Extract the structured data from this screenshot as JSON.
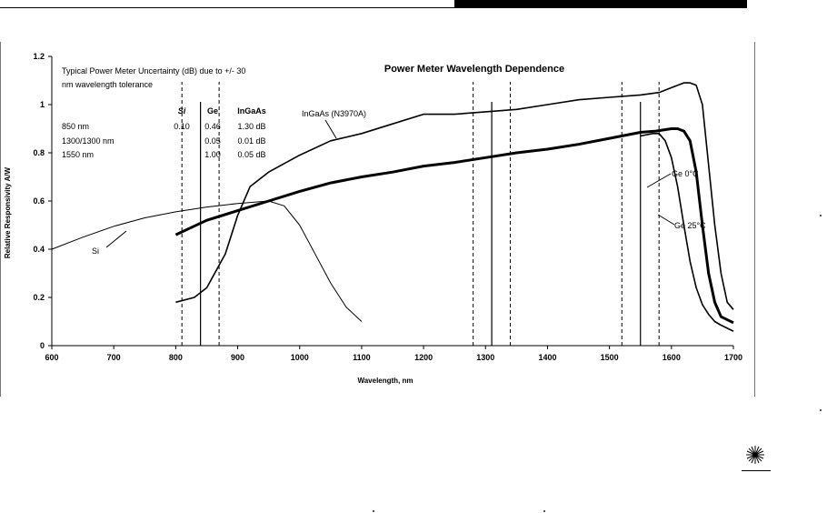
{
  "chart_data": {
    "type": "line",
    "title": "Power Meter Wavelength Dependence",
    "xlabel": "Wavelength, nm",
    "ylabel": "Relative Responsivity A/W",
    "xlim": [
      600,
      1700
    ],
    "ylim": [
      0,
      1.2
    ],
    "x_ticks": [
      "600",
      "700",
      "800",
      "900",
      "1000",
      "1100",
      "1200",
      "1300",
      "1400",
      "1500",
      "1600",
      "1700"
    ],
    "y_ticks": [
      "0",
      "0.2",
      "0.4",
      "0.6",
      "0.8",
      "1",
      "1.2"
    ],
    "series": [
      {
        "name": "Si",
        "weight": "thin",
        "x": [
          600,
          650,
          700,
          750,
          800,
          850,
          900,
          950,
          975,
          1000,
          1025,
          1050,
          1075,
          1100
        ],
        "y": [
          0.4,
          0.45,
          0.495,
          0.53,
          0.555,
          0.575,
          0.59,
          0.6,
          0.58,
          0.5,
          0.38,
          0.26,
          0.16,
          0.1
        ]
      },
      {
        "name": "Ge 25°C",
        "weight": "thick",
        "x": [
          800,
          850,
          900,
          950,
          1000,
          1050,
          1100,
          1150,
          1200,
          1250,
          1300,
          1350,
          1400,
          1450,
          1500,
          1550,
          1575,
          1600,
          1610,
          1620,
          1630,
          1640,
          1650,
          1660,
          1670,
          1680,
          1700
        ],
        "y": [
          0.46,
          0.52,
          0.56,
          0.6,
          0.64,
          0.675,
          0.7,
          0.72,
          0.745,
          0.76,
          0.78,
          0.8,
          0.815,
          0.835,
          0.86,
          0.885,
          0.89,
          0.9,
          0.9,
          0.89,
          0.85,
          0.72,
          0.5,
          0.3,
          0.18,
          0.12,
          0.095
        ]
      },
      {
        "name": "Ge 0°C",
        "weight": "medium",
        "x": [
          1550,
          1570,
          1580,
          1590,
          1600,
          1610,
          1620,
          1630,
          1640,
          1650,
          1660,
          1670,
          1680,
          1700
        ],
        "y": [
          0.87,
          0.88,
          0.88,
          0.85,
          0.78,
          0.66,
          0.5,
          0.35,
          0.24,
          0.17,
          0.13,
          0.1,
          0.085,
          0.06
        ]
      },
      {
        "name": "InGaAs (N3970A)",
        "weight": "medium",
        "x": [
          800,
          830,
          850,
          880,
          900,
          920,
          950,
          1000,
          1050,
          1100,
          1150,
          1200,
          1250,
          1300,
          1350,
          1400,
          1450,
          1500,
          1550,
          1580,
          1600,
          1620,
          1630,
          1640,
          1650,
          1660,
          1670,
          1680,
          1690,
          1700
        ],
        "y": [
          0.18,
          0.2,
          0.24,
          0.38,
          0.54,
          0.66,
          0.72,
          0.79,
          0.85,
          0.88,
          0.92,
          0.96,
          0.96,
          0.97,
          0.98,
          1.0,
          1.02,
          1.03,
          1.04,
          1.05,
          1.07,
          1.09,
          1.09,
          1.08,
          1.0,
          0.75,
          0.5,
          0.3,
          0.18,
          0.15
        ]
      }
    ],
    "reference_lines": {
      "solid": [
        840,
        1310,
        1550
      ],
      "dashed": [
        810,
        870,
        1280,
        1340,
        1520,
        1580
      ]
    },
    "annotations": [
      {
        "text": "InGaAs (N3970A)",
        "series": "InGaAs (N3970A)",
        "arrow_to": [
          1070,
          0.87
        ]
      },
      {
        "text": "Si",
        "series": "Si",
        "arrow_to": [
          720,
          0.485
        ]
      },
      {
        "text": "Ge 0°C",
        "series": "Ge 0°C",
        "arrow_to": [
          1570,
          0.66
        ]
      },
      {
        "text": "Ge 25°C",
        "series": "Ge 25°C",
        "arrow_to": [
          1620,
          0.49
        ]
      }
    ],
    "uncertainty_table": {
      "caption_line1": "Typical Power Meter Uncertainty (dB) due to +/- 30",
      "caption_line2": "nm wavelength tolerance",
      "headers": [
        "Si",
        "Ge",
        "InGaAs"
      ],
      "rows": [
        {
          "label": "850 nm",
          "cells": [
            "0.10",
            "0.46",
            "1.30 dB"
          ]
        },
        {
          "label": "1300/1300 nm",
          "cells": [
            "",
            "0.05",
            "0.01 dB"
          ]
        },
        {
          "label": "1550 nm",
          "cells": [
            "",
            "1.00",
            "0.05 dB"
          ]
        }
      ]
    }
  }
}
